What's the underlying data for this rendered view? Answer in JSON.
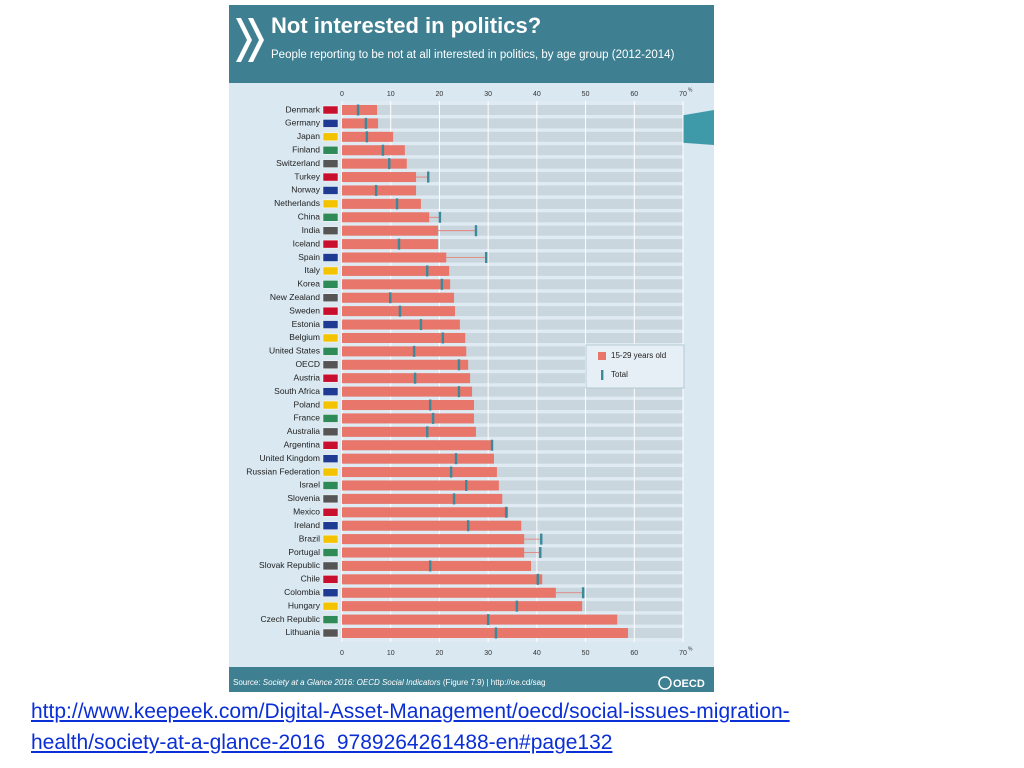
{
  "chart_data": {
    "type": "bar",
    "orientation": "horizontal",
    "title": "Not interested in politics?",
    "subtitle": "People reporting to be not at all interested in politics, by age group (2012-2014)",
    "categories": [
      "Denmark",
      "Germany",
      "Japan",
      "Finland",
      "Switzerland",
      "Turkey",
      "Norway",
      "Netherlands",
      "China",
      "India",
      "Iceland",
      "Spain",
      "Italy",
      "Korea",
      "New Zealand",
      "Sweden",
      "Estonia",
      "Belgium",
      "United States",
      "OECD",
      "Austria",
      "South Africa",
      "Poland",
      "France",
      "Australia",
      "Argentina",
      "United Kingdom",
      "Russian Federation",
      "Israel",
      "Slovenia",
      "Mexico",
      "Ireland",
      "Brazil",
      "Portugal",
      "Slovak Republic",
      "Chile",
      "Colombia",
      "Hungary",
      "Czech Republic",
      "Lithuania"
    ],
    "series": [
      {
        "name": "15-29 years old",
        "color": "#e8766b",
        "marker": "bar",
        "values": [
          7.2,
          7.4,
          10.5,
          12.9,
          13.3,
          15.2,
          15.2,
          16.2,
          17.9,
          19.7,
          19.7,
          21.4,
          22.0,
          22.2,
          23.0,
          23.2,
          24.2,
          25.3,
          25.5,
          25.9,
          26.3,
          26.7,
          27.1,
          27.1,
          27.5,
          30.6,
          31.2,
          31.8,
          32.2,
          32.9,
          34.1,
          36.8,
          37.4,
          37.4,
          38.8,
          41.1,
          43.9,
          49.3,
          56.5,
          58.7
        ]
      },
      {
        "name": "Total",
        "color": "#3a8a9c",
        "marker": "tick",
        "values": [
          3.3,
          4.9,
          5.1,
          8.4,
          9.7,
          17.7,
          7.0,
          11.3,
          20.1,
          27.5,
          11.7,
          29.6,
          17.5,
          20.5,
          9.9,
          11.9,
          16.2,
          20.7,
          14.8,
          24.0,
          15.0,
          24.0,
          18.1,
          18.7,
          17.5,
          30.8,
          23.4,
          22.4,
          25.5,
          23.0,
          33.7,
          25.9,
          40.9,
          40.7,
          18.1,
          40.2,
          49.5,
          35.9,
          30.0,
          31.6
        ]
      }
    ],
    "xlim": [
      0,
      70
    ],
    "xticks": [
      0,
      10,
      20,
      30,
      40,
      50,
      60,
      70
    ],
    "unit": "%",
    "grid": true,
    "legend": "right",
    "source": [
      "Source: ",
      "Society at a Glance 2016: OECD Social Indicators",
      " (Figure 7.9) | http://oe.cd/sag"
    ],
    "logo": "OECD"
  },
  "link": [
    "http://www.keepeek.com/Digital-Asset-Management/oecd/social-issues-migration-",
    "health/society-at-a-glance-2016_9789264261488-en#page132"
  ]
}
